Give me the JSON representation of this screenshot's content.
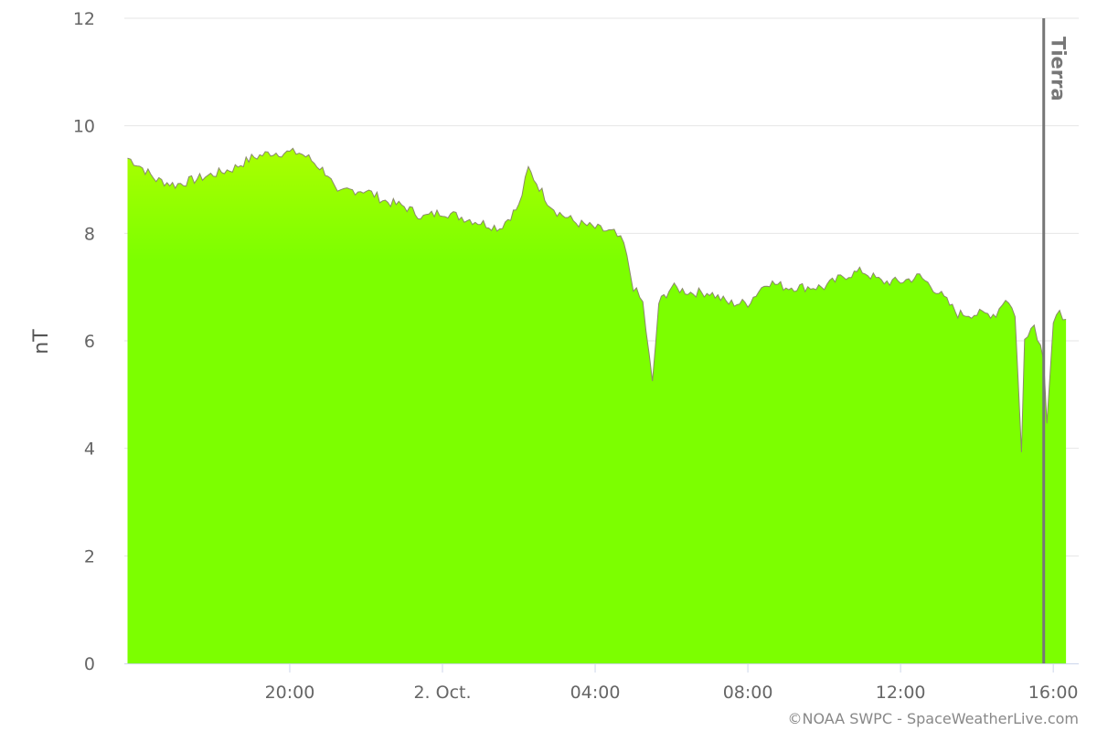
{
  "chart_data": {
    "type": "area",
    "title": "",
    "ylabel": "nT",
    "xlabel": "",
    "ylim": [
      0,
      12
    ],
    "y_ticks": [
      "0",
      "2",
      "4",
      "6",
      "8",
      "10",
      "12"
    ],
    "x_range": [
      "2023-10-01T15:40",
      "2023-10-02T16:40"
    ],
    "x_ticks": [
      {
        "x": "2023-10-01T20:00",
        "label": "20:00"
      },
      {
        "x": "2023-10-02T00:00",
        "label": "2. Oct."
      },
      {
        "x": "2023-10-02T04:00",
        "label": "04:00"
      },
      {
        "x": "2023-10-02T08:00",
        "label": "08:00"
      },
      {
        "x": "2023-10-02T12:00",
        "label": "12:00"
      },
      {
        "x": "2023-10-02T16:00",
        "label": "16:00"
      }
    ],
    "grid": "horizontal",
    "colors": {
      "fill_top": "#aaff00",
      "fill_main": "#7cff00",
      "line": "#8a8a6a",
      "plotline": "#777777",
      "grid": "#e6e6e6",
      "axis": "#ccd6eb"
    },
    "plot_line": {
      "x": "2023-10-02T15:45",
      "label": "Tierra"
    },
    "series": [
      {
        "x": [
          "2023-10-01T15:45",
          "2023-10-01T16:00",
          "2023-10-01T16:30",
          "2023-10-01T17:00",
          "2023-10-01T17:30",
          "2023-10-01T18:00",
          "2023-10-01T18:30",
          "2023-10-01T19:00",
          "2023-10-01T19:30",
          "2023-10-01T20:00",
          "2023-10-01T20:15",
          "2023-10-01T20:30",
          "2023-10-01T21:00",
          "2023-10-01T21:15",
          "2023-10-01T21:30",
          "2023-10-01T22:00",
          "2023-10-01T22:30",
          "2023-10-01T23:00",
          "2023-10-01T23:30",
          "2023-10-02T00:00",
          "2023-10-02T00:30",
          "2023-10-02T01:00",
          "2023-10-02T01:30",
          "2023-10-02T02:00",
          "2023-10-02T02:15",
          "2023-10-02T02:45",
          "2023-10-02T03:00",
          "2023-10-02T03:30",
          "2023-10-02T04:00",
          "2023-10-02T04:30",
          "2023-10-02T04:45",
          "2023-10-02T05:00",
          "2023-10-02T05:15",
          "2023-10-02T05:30",
          "2023-10-02T05:40",
          "2023-10-02T06:00",
          "2023-10-02T06:30",
          "2023-10-02T07:00",
          "2023-10-02T07:30",
          "2023-10-02T08:00",
          "2023-10-02T08:30",
          "2023-10-02T09:00",
          "2023-10-02T09:30",
          "2023-10-02T10:00",
          "2023-10-02T10:30",
          "2023-10-02T11:00",
          "2023-10-02T11:30",
          "2023-10-02T12:00",
          "2023-10-02T12:30",
          "2023-10-02T13:00",
          "2023-10-02T13:30",
          "2023-10-02T14:00",
          "2023-10-02T14:30",
          "2023-10-02T14:45",
          "2023-10-02T15:00",
          "2023-10-02T15:10",
          "2023-10-02T15:15",
          "2023-10-02T15:30",
          "2023-10-02T15:45",
          "2023-10-02T15:50",
          "2023-10-02T16:00",
          "2023-10-02T16:10",
          "2023-10-02T16:20"
        ],
        "values": [
          9.4,
          9.3,
          9.0,
          8.9,
          9.0,
          9.1,
          9.2,
          9.4,
          9.5,
          9.5,
          9.5,
          9.4,
          9.1,
          8.7,
          8.8,
          8.8,
          8.6,
          8.5,
          8.3,
          8.4,
          8.3,
          8.2,
          8.1,
          8.5,
          9.2,
          8.6,
          8.4,
          8.2,
          8.1,
          8.0,
          7.8,
          7.0,
          6.7,
          5.2,
          6.7,
          7.0,
          6.9,
          6.9,
          6.7,
          6.7,
          7.1,
          7.0,
          7.0,
          7.0,
          7.2,
          7.3,
          7.1,
          7.1,
          7.2,
          6.9,
          6.5,
          6.5,
          6.5,
          6.8,
          6.5,
          3.9,
          6.1,
          6.3,
          5.7,
          4.5,
          6.3,
          6.5,
          6.4
        ]
      }
    ]
  },
  "credits": "©NOAA SWPC - SpaceWeatherLive.com"
}
